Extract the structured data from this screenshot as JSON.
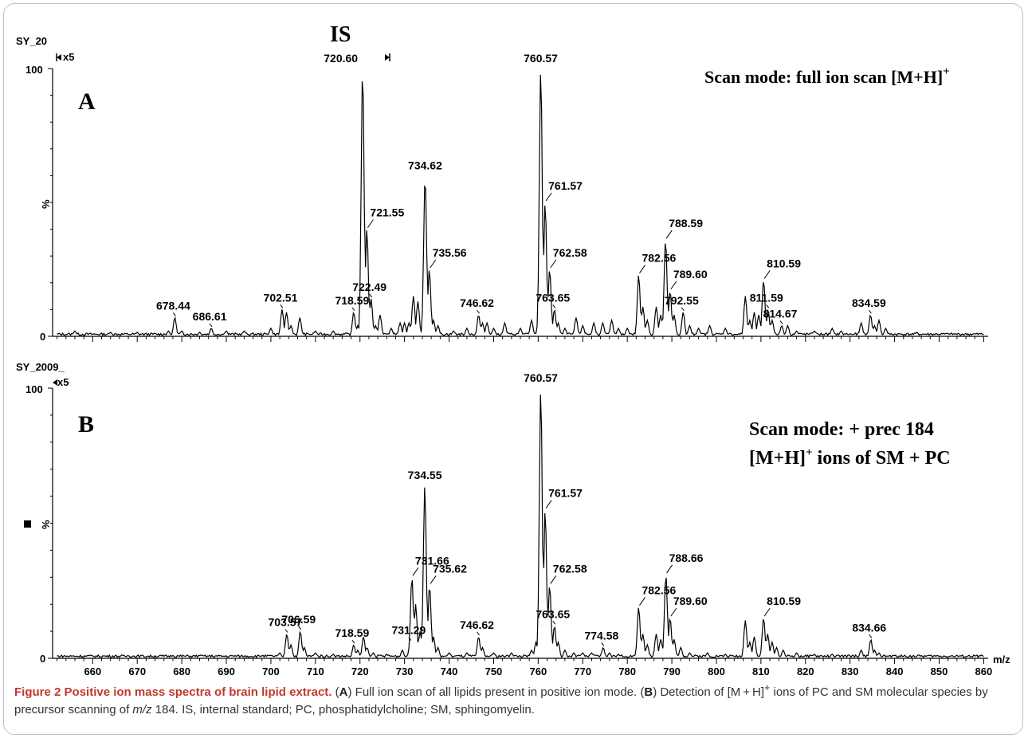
{
  "chart_data": [
    {
      "type": "line",
      "panel_letter": "A",
      "corner_label": "SY_20",
      "scale_marker": "x5",
      "y_axis_label": "%",
      "y_ticks": [
        "0",
        "100"
      ],
      "is_label": "IS",
      "scan_mode_lines": [
        "Scan mode: full ion scan [M+H]",
        "+"
      ],
      "xlim": [
        651,
        861
      ],
      "ylim": [
        0,
        100
      ],
      "peaks": [
        {
          "mz": 678.44,
          "y": 7,
          "label": "678.44"
        },
        {
          "mz": 686.61,
          "y": 3,
          "label": "686.61"
        },
        {
          "mz": 702.51,
          "y": 10,
          "label": "702.51"
        },
        {
          "mz": 718.59,
          "y": 9,
          "label": "718.59"
        },
        {
          "mz": 720.6,
          "y": 100,
          "label": "720.60"
        },
        {
          "mz": 721.55,
          "y": 40,
          "label": "721.55"
        },
        {
          "mz": 722.49,
          "y": 14,
          "label": "722.49"
        },
        {
          "mz": 734.62,
          "y": 60,
          "label": "734.62"
        },
        {
          "mz": 735.56,
          "y": 25,
          "label": "735.56"
        },
        {
          "mz": 746.62,
          "y": 8,
          "label": "746.62"
        },
        {
          "mz": 760.57,
          "y": 100,
          "label": "760.57"
        },
        {
          "mz": 761.57,
          "y": 50,
          "label": "761.57"
        },
        {
          "mz": 762.58,
          "y": 25,
          "label": "762.58"
        },
        {
          "mz": 763.65,
          "y": 10,
          "label": "763.65"
        },
        {
          "mz": 782.56,
          "y": 23,
          "label": "782.56"
        },
        {
          "mz": 788.59,
          "y": 36,
          "label": "788.59"
        },
        {
          "mz": 789.6,
          "y": 17,
          "label": "789.60"
        },
        {
          "mz": 792.55,
          "y": 9,
          "label": "792.55"
        },
        {
          "mz": 810.59,
          "y": 21,
          "label": "810.59"
        },
        {
          "mz": 811.59,
          "y": 10,
          "label": "811.59"
        },
        {
          "mz": 814.67,
          "y": 4,
          "label": "814.67"
        },
        {
          "mz": 834.59,
          "y": 8,
          "label": "834.59"
        }
      ],
      "minor_peaks": [
        {
          "mz": 656,
          "y": 2
        },
        {
          "mz": 664,
          "y": 1.5
        },
        {
          "mz": 670,
          "y": 1.5
        },
        {
          "mz": 677,
          "y": 2
        },
        {
          "mz": 680,
          "y": 2
        },
        {
          "mz": 684,
          "y": 1.5
        },
        {
          "mz": 690,
          "y": 2
        },
        {
          "mz": 694,
          "y": 2
        },
        {
          "mz": 700,
          "y": 3
        },
        {
          "mz": 703.5,
          "y": 9
        },
        {
          "mz": 704.5,
          "y": 4
        },
        {
          "mz": 706.5,
          "y": 7
        },
        {
          "mz": 710,
          "y": 2
        },
        {
          "mz": 714,
          "y": 2
        },
        {
          "mz": 719.5,
          "y": 4
        },
        {
          "mz": 723.5,
          "y": 4
        },
        {
          "mz": 724.5,
          "y": 8
        },
        {
          "mz": 727,
          "y": 3
        },
        {
          "mz": 729,
          "y": 5
        },
        {
          "mz": 730,
          "y": 5
        },
        {
          "mz": 731,
          "y": 5
        },
        {
          "mz": 732,
          "y": 15
        },
        {
          "mz": 733,
          "y": 13
        },
        {
          "mz": 736.5,
          "y": 6
        },
        {
          "mz": 737.5,
          "y": 4
        },
        {
          "mz": 741,
          "y": 2
        },
        {
          "mz": 744,
          "y": 3
        },
        {
          "mz": 747.5,
          "y": 5
        },
        {
          "mz": 748.5,
          "y": 5
        },
        {
          "mz": 750,
          "y": 3
        },
        {
          "mz": 752.5,
          "y": 5
        },
        {
          "mz": 756,
          "y": 3
        },
        {
          "mz": 758.5,
          "y": 6
        },
        {
          "mz": 764.5,
          "y": 5
        },
        {
          "mz": 766,
          "y": 3
        },
        {
          "mz": 768.5,
          "y": 7
        },
        {
          "mz": 770,
          "y": 4
        },
        {
          "mz": 772.5,
          "y": 5
        },
        {
          "mz": 774.5,
          "y": 5
        },
        {
          "mz": 776.5,
          "y": 6
        },
        {
          "mz": 778,
          "y": 3
        },
        {
          "mz": 780,
          "y": 3
        },
        {
          "mz": 783.5,
          "y": 11
        },
        {
          "mz": 784.5,
          "y": 6
        },
        {
          "mz": 786.5,
          "y": 11
        },
        {
          "mz": 787.5,
          "y": 8
        },
        {
          "mz": 790.5,
          "y": 8
        },
        {
          "mz": 794,
          "y": 4
        },
        {
          "mz": 796,
          "y": 3
        },
        {
          "mz": 798.5,
          "y": 4
        },
        {
          "mz": 802,
          "y": 3
        },
        {
          "mz": 806.5,
          "y": 15
        },
        {
          "mz": 807.5,
          "y": 6
        },
        {
          "mz": 808.5,
          "y": 9
        },
        {
          "mz": 809.5,
          "y": 8
        },
        {
          "mz": 812.5,
          "y": 6
        },
        {
          "mz": 816,
          "y": 4
        },
        {
          "mz": 818,
          "y": 2
        },
        {
          "mz": 822,
          "y": 2
        },
        {
          "mz": 826,
          "y": 3
        },
        {
          "mz": 828,
          "y": 2
        },
        {
          "mz": 832.5,
          "y": 5
        },
        {
          "mz": 835.5,
          "y": 4
        },
        {
          "mz": 836.5,
          "y": 6
        },
        {
          "mz": 838,
          "y": 3
        },
        {
          "mz": 845,
          "y": 1.5
        },
        {
          "mz": 852,
          "y": 1
        }
      ]
    },
    {
      "type": "line",
      "panel_letter": "B",
      "corner_label": "SY_2009_",
      "scale_marker": "x5",
      "y_axis_label": "%",
      "y_ticks": [
        "0",
        "100"
      ],
      "x_axis_label": "m/z",
      "x_ticks": [
        660,
        670,
        680,
        690,
        700,
        710,
        720,
        730,
        740,
        750,
        760,
        770,
        780,
        790,
        800,
        810,
        820,
        830,
        840,
        850,
        860
      ],
      "scan_mode_lines": [
        "Scan mode: + prec 184",
        "[M+H]",
        "+",
        " ions of SM + PC"
      ],
      "xlim": [
        651,
        861
      ],
      "ylim": [
        0,
        100
      ],
      "peaks": [
        {
          "mz": 703.57,
          "y": 9,
          "label": "703.57"
        },
        {
          "mz": 706.59,
          "y": 10,
          "label": "706.59"
        },
        {
          "mz": 718.59,
          "y": 5,
          "label": "718.59"
        },
        {
          "mz": 731.29,
          "y": 6,
          "label": "731.29"
        },
        {
          "mz": 731.66,
          "y": 30,
          "label": "731.66"
        },
        {
          "mz": 734.55,
          "y": 64,
          "label": "734.55"
        },
        {
          "mz": 735.62,
          "y": 27,
          "label": "735.62"
        },
        {
          "mz": 746.62,
          "y": 8,
          "label": "746.62"
        },
        {
          "mz": 760.57,
          "y": 100,
          "label": "760.57"
        },
        {
          "mz": 761.57,
          "y": 55,
          "label": "761.57"
        },
        {
          "mz": 762.58,
          "y": 27,
          "label": "762.58"
        },
        {
          "mz": 763.65,
          "y": 12,
          "label": "763.65"
        },
        {
          "mz": 774.58,
          "y": 4,
          "label": "774.58"
        },
        {
          "mz": 782.56,
          "y": 19,
          "label": "782.56"
        },
        {
          "mz": 788.66,
          "y": 31,
          "label": "788.66"
        },
        {
          "mz": 789.6,
          "y": 15,
          "label": "789.60"
        },
        {
          "mz": 810.59,
          "y": 15,
          "label": "810.59"
        },
        {
          "mz": 834.66,
          "y": 7,
          "label": "834.66"
        }
      ],
      "minor_peaks": [
        {
          "mz": 668,
          "y": 1
        },
        {
          "mz": 678,
          "y": 1
        },
        {
          "mz": 684,
          "y": 1
        },
        {
          "mz": 692,
          "y": 1
        },
        {
          "mz": 698,
          "y": 1
        },
        {
          "mz": 702,
          "y": 2
        },
        {
          "mz": 704.5,
          "y": 5
        },
        {
          "mz": 707.5,
          "y": 4
        },
        {
          "mz": 710,
          "y": 2
        },
        {
          "mz": 714,
          "y": 1.5
        },
        {
          "mz": 719.5,
          "y": 3
        },
        {
          "mz": 720.8,
          "y": 8
        },
        {
          "mz": 721.6,
          "y": 4
        },
        {
          "mz": 723,
          "y": 2
        },
        {
          "mz": 726,
          "y": 1.5
        },
        {
          "mz": 729.5,
          "y": 3
        },
        {
          "mz": 732.5,
          "y": 20
        },
        {
          "mz": 733.5,
          "y": 10
        },
        {
          "mz": 736.5,
          "y": 8
        },
        {
          "mz": 737.5,
          "y": 4
        },
        {
          "mz": 740,
          "y": 2
        },
        {
          "mz": 744,
          "y": 2
        },
        {
          "mz": 747.5,
          "y": 4
        },
        {
          "mz": 750,
          "y": 2
        },
        {
          "mz": 754,
          "y": 2
        },
        {
          "mz": 758.5,
          "y": 3
        },
        {
          "mz": 759.5,
          "y": 6
        },
        {
          "mz": 764.5,
          "y": 6
        },
        {
          "mz": 766,
          "y": 3
        },
        {
          "mz": 768,
          "y": 2
        },
        {
          "mz": 770,
          "y": 2
        },
        {
          "mz": 772,
          "y": 2
        },
        {
          "mz": 776,
          "y": 2
        },
        {
          "mz": 778,
          "y": 1.5
        },
        {
          "mz": 783.5,
          "y": 9
        },
        {
          "mz": 784.5,
          "y": 5
        },
        {
          "mz": 786.5,
          "y": 9
        },
        {
          "mz": 787.5,
          "y": 7
        },
        {
          "mz": 790.5,
          "y": 7
        },
        {
          "mz": 792,
          "y": 4
        },
        {
          "mz": 794,
          "y": 2
        },
        {
          "mz": 798,
          "y": 2
        },
        {
          "mz": 802,
          "y": 1.5
        },
        {
          "mz": 806.5,
          "y": 14
        },
        {
          "mz": 807.5,
          "y": 6
        },
        {
          "mz": 808.5,
          "y": 8
        },
        {
          "mz": 811.5,
          "y": 9
        },
        {
          "mz": 812.5,
          "y": 6
        },
        {
          "mz": 813.5,
          "y": 4
        },
        {
          "mz": 815,
          "y": 3
        },
        {
          "mz": 818,
          "y": 2
        },
        {
          "mz": 822,
          "y": 1.5
        },
        {
          "mz": 826,
          "y": 1.5
        },
        {
          "mz": 832.5,
          "y": 3
        },
        {
          "mz": 835.5,
          "y": 3
        },
        {
          "mz": 836.5,
          "y": 2
        },
        {
          "mz": 840,
          "y": 1
        },
        {
          "mz": 846,
          "y": 1
        }
      ]
    }
  ],
  "caption": {
    "figure_label": "Figure 2",
    "title": "Positive ion mass spectra of brain lipid extract.",
    "text_1": " (",
    "ref_a": "A",
    "text_2": ") Full ion scan of all lipids present in positive ion mode. (",
    "ref_b": "B",
    "text_3": ") Detection of [M + H]",
    "superscript": "+",
    "text_4": " ions of PC and SM molecular species by precursor scanning of ",
    "mz_italic": "m/z",
    "text_5": " 184. IS, internal standard; PC, phosphatidylcholine; SM, sphingomyelin."
  }
}
